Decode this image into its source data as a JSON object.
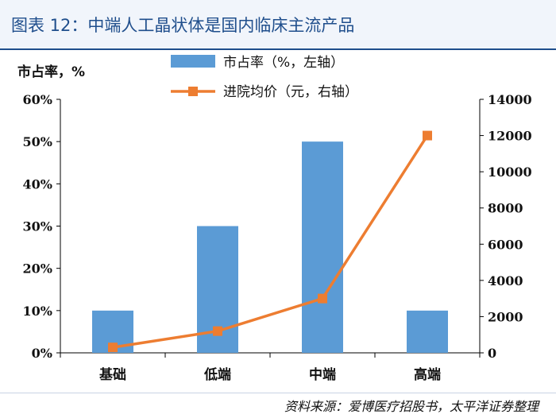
{
  "figure": {
    "title": "图表 12：中端人工晶状体是国内临床主流产品",
    "y_unit": "市占率，%",
    "source": "资料来源：爱博医疗招股书，太平洋证券整理"
  },
  "colors": {
    "bar": "#5b9bd5",
    "line": "#ed7d31",
    "title": "#1f4e8c",
    "axis": "#000000"
  },
  "chart_data": {
    "type": "bar",
    "categories": [
      "基础",
      "低端",
      "中端",
      "高端"
    ],
    "series": [
      {
        "name": "市占率（%，左轴）",
        "type": "bar",
        "axis": "left",
        "values": [
          10,
          30,
          50,
          10
        ]
      },
      {
        "name": "进院均价（元，右轴）",
        "type": "line",
        "axis": "right",
        "marker": "square",
        "values": [
          300,
          1200,
          3000,
          12000
        ]
      }
    ],
    "left_axis": {
      "range": [
        0,
        60
      ],
      "step": 10,
      "tick_labels": [
        "0%",
        "10%",
        "20%",
        "30%",
        "40%",
        "50%",
        "60%"
      ]
    },
    "right_axis": {
      "range": [
        0,
        14000
      ],
      "step": 2000,
      "tick_labels": [
        "0",
        "2000",
        "4000",
        "6000",
        "8000",
        "10000",
        "12000",
        "14000"
      ]
    },
    "grid": false,
    "legend_position": "top-center"
  }
}
